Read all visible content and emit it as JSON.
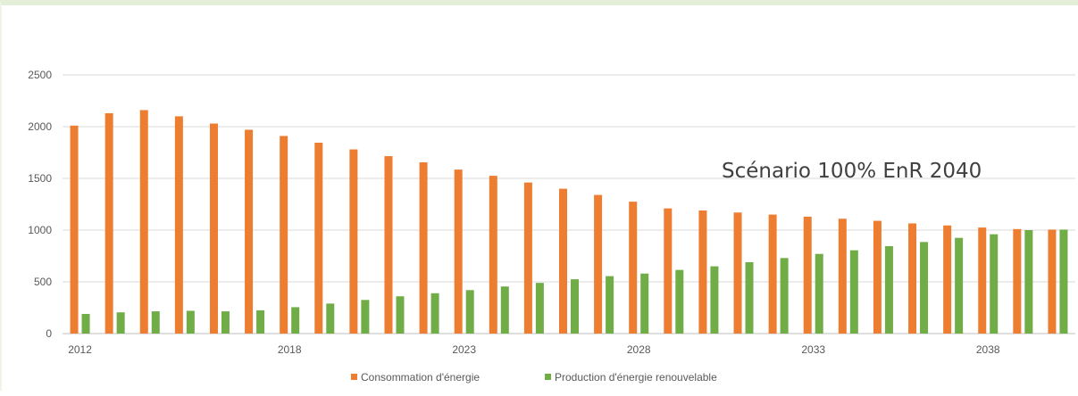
{
  "chart_data": {
    "type": "bar",
    "title": "",
    "xlabel": "",
    "ylabel": "",
    "ylim": [
      0,
      2500
    ],
    "yticks": [
      0,
      500,
      1000,
      1500,
      2000,
      2500
    ],
    "grid": true,
    "legend_position": "bottom",
    "annotation": "Scénario 100% EnR 2040",
    "categories": [
      "2012",
      "2013",
      "2014",
      "2015",
      "2016",
      "2017",
      "2018",
      "2019",
      "2020",
      "2021",
      "2022",
      "2023",
      "2024",
      "2025",
      "2026",
      "2027",
      "2028",
      "2029",
      "2030",
      "2031",
      "2032",
      "2033",
      "2034",
      "2035",
      "2036",
      "2037",
      "2038",
      "2039",
      "2040"
    ],
    "xtick_labels": [
      "2012",
      "2018",
      "2023",
      "2028",
      "2033",
      "2038"
    ],
    "series": [
      {
        "name": "Consommation d'énergie",
        "color": "#ed7d31",
        "values": [
          2010,
          2130,
          2160,
          2100,
          2030,
          1970,
          1910,
          1845,
          1780,
          1715,
          1655,
          1585,
          1525,
          1460,
          1400,
          1340,
          1275,
          1210,
          1190,
          1170,
          1150,
          1130,
          1110,
          1090,
          1065,
          1045,
          1025,
          1010,
          1005
        ]
      },
      {
        "name": "Production d'énergie renouvelable",
        "color": "#70ad47",
        "values": [
          190,
          205,
          215,
          220,
          215,
          225,
          255,
          290,
          325,
          360,
          390,
          420,
          455,
          490,
          525,
          555,
          580,
          615,
          650,
          690,
          730,
          770,
          805,
          845,
          885,
          925,
          960,
          1000,
          1005
        ]
      }
    ]
  }
}
